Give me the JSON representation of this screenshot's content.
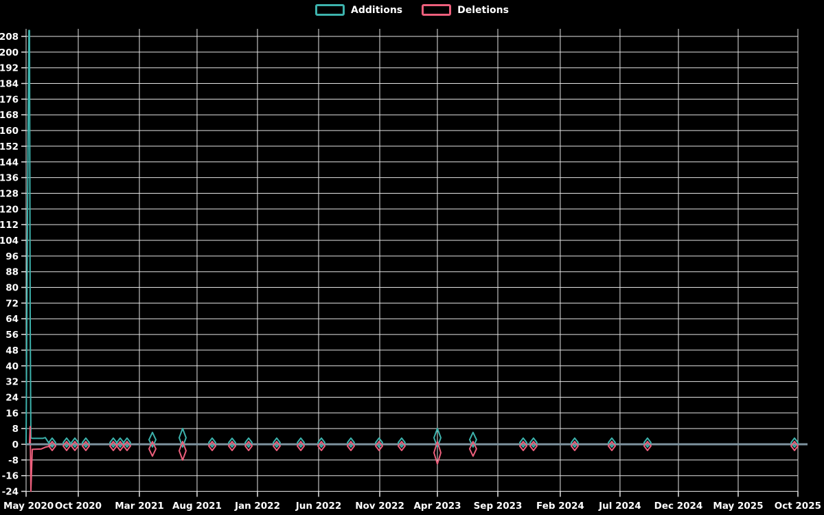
{
  "chart_data": {
    "type": "line",
    "title": "",
    "legend": [
      "Additions",
      "Deletions"
    ],
    "background": "#000000",
    "grid_color": "#e6e6e6",
    "text_color": "#ffffff",
    "zero_line_color": "#7e939f",
    "grid": true,
    "legend_position": "top-center",
    "y_axis": {
      "min": -24,
      "max": 208,
      "step": 8,
      "ticks": [
        {
          "v": -24,
          "label": "-24"
        },
        {
          "v": -16,
          "label": "-16"
        },
        {
          "v": -8,
          "label": "-8"
        },
        {
          "v": 0,
          "label": "0"
        },
        {
          "v": 8,
          "label": "8"
        },
        {
          "v": 16,
          "label": "16"
        },
        {
          "v": 24,
          "label": "24"
        },
        {
          "v": 32,
          "label": "32"
        },
        {
          "v": 40,
          "label": "40"
        },
        {
          "v": 48,
          "label": "48"
        },
        {
          "v": 56,
          "label": "56"
        },
        {
          "v": 64,
          "label": "64"
        },
        {
          "v": 72,
          "label": "72"
        },
        {
          "v": 80,
          "label": "80"
        },
        {
          "v": 88,
          "label": "88"
        },
        {
          "v": 96,
          "label": "96"
        },
        {
          "v": 104,
          "label": "104"
        },
        {
          "v": 112,
          "label": "112"
        },
        {
          "v": 120,
          "label": "120"
        },
        {
          "v": 128,
          "label": "128"
        },
        {
          "v": 136,
          "label": "136"
        },
        {
          "v": 144,
          "label": "144"
        },
        {
          "v": 152,
          "label": "152"
        },
        {
          "v": 160,
          "label": "160"
        },
        {
          "v": 168,
          "label": "168"
        },
        {
          "v": 176,
          "label": "176"
        },
        {
          "v": 184,
          "label": "184"
        },
        {
          "v": 192,
          "label": "192"
        },
        {
          "v": 200,
          "label": "200"
        },
        {
          "v": 208,
          "label": "208"
        }
      ]
    },
    "x_axis": {
      "ticks": [
        {
          "label": "May 2020",
          "pos": 0.0
        },
        {
          "label": "Oct 2020",
          "pos": 0.0676
        },
        {
          "label": "Mar 2021",
          "pos": 0.1468
        },
        {
          "label": "Aug 2021",
          "pos": 0.2215
        },
        {
          "label": "Jan 2022",
          "pos": 0.2998
        },
        {
          "label": "Jun 2022",
          "pos": 0.379
        },
        {
          "label": "Nov 2022",
          "pos": 0.4582
        },
        {
          "label": "Apr 2023",
          "pos": 0.5329
        },
        {
          "label": "Sep 2023",
          "pos": 0.6112
        },
        {
          "label": "Feb 2024",
          "pos": 0.6921
        },
        {
          "label": "Jul 2024",
          "pos": 0.7695
        },
        {
          "label": "Dec 2024",
          "pos": 0.8452
        },
        {
          "label": "May 2025",
          "pos": 0.9226
        },
        {
          "label": "Oct 2025",
          "pos": 1.0
        }
      ]
    },
    "series": [
      {
        "name": "Additions",
        "color": "#3db3ad",
        "clipped_peak": true,
        "start_profile": [
          [
            0.0,
            0
          ],
          [
            0.0018,
            118
          ],
          [
            0.0036,
            211
          ],
          [
            0.0044,
            211
          ],
          [
            0.0053,
            65
          ],
          [
            0.0062,
            3.2
          ],
          [
            0.0089,
            3
          ],
          [
            0.0214,
            3
          ],
          [
            0.0249,
            3.4
          ],
          [
            0.0285,
            1.2
          ],
          [
            0.032,
            0
          ]
        ]
      },
      {
        "name": "Deletions",
        "color": "#ed5f7c",
        "clipped_peak": true,
        "start_profile": [
          [
            0.0,
            0
          ],
          [
            0.0044,
            0
          ],
          [
            0.0053,
            9
          ],
          [
            0.0062,
            -24
          ],
          [
            0.008,
            -2.6
          ],
          [
            0.0196,
            -2.4
          ],
          [
            0.0249,
            -1.5
          ],
          [
            0.0302,
            -1
          ],
          [
            0.036,
            0
          ]
        ]
      }
    ],
    "events": [
      {
        "date": "2020-07",
        "pos": 0.0338,
        "add": 1,
        "del": -1
      },
      {
        "date": "2020-08",
        "pos": 0.0525,
        "add": 1,
        "del": -1
      },
      {
        "date": "2020-09",
        "pos": 0.0632,
        "add": 1,
        "del": -1
      },
      {
        "date": "2020-10",
        "pos": 0.0774,
        "add": 1,
        "del": -1
      },
      {
        "date": "2020-12",
        "pos": 0.113,
        "add": 1,
        "del": -1
      },
      {
        "date": "2021-01",
        "pos": 0.1219,
        "add": 1,
        "del": -1
      },
      {
        "date": "2021-01",
        "pos": 0.1308,
        "add": 1,
        "del": -1
      },
      {
        "date": "2021-03",
        "pos": 0.1637,
        "add": 5,
        "del": -5
      },
      {
        "date": "2021-06",
        "pos": 0.2028,
        "add": 7,
        "del": -7
      },
      {
        "date": "2021-08",
        "pos": 0.2411,
        "add": 1,
        "del": -1
      },
      {
        "date": "2021-10",
        "pos": 0.2669,
        "add": 2,
        "del": -1
      },
      {
        "date": "2021-11",
        "pos": 0.2883,
        "add": 1,
        "del": -1
      },
      {
        "date": "2022-02",
        "pos": 0.3247,
        "add": 1,
        "del": -1
      },
      {
        "date": "2022-04",
        "pos": 0.3559,
        "add": 1,
        "del": -1
      },
      {
        "date": "2022-05",
        "pos": 0.3826,
        "add": 1,
        "del": -1
      },
      {
        "date": "2022-08",
        "pos": 0.4208,
        "add": 1,
        "del": -1
      },
      {
        "date": "2022-10",
        "pos": 0.4573,
        "add": 1,
        "del": -1
      },
      {
        "date": "2022-12",
        "pos": 0.4866,
        "add": 1,
        "del": -1
      },
      {
        "date": "2023-03",
        "pos": 0.5329,
        "add": 7,
        "del": -9
      },
      {
        "date": "2023-06",
        "pos": 0.5791,
        "add": 5,
        "del": -5
      },
      {
        "date": "2023-10",
        "pos": 0.6441,
        "add": 1,
        "del": -1
      },
      {
        "date": "2023-11",
        "pos": 0.6574,
        "add": 1,
        "del": -1
      },
      {
        "date": "2024-03",
        "pos": 0.7108,
        "add": 1,
        "del": -1
      },
      {
        "date": "2024-06",
        "pos": 0.7589,
        "add": 1,
        "del": -1
      },
      {
        "date": "2024-09",
        "pos": 0.8051,
        "add": 1,
        "del": -1
      },
      {
        "date": "2025-09",
        "pos": 0.9956,
        "add": 1,
        "del": -1
      }
    ]
  }
}
